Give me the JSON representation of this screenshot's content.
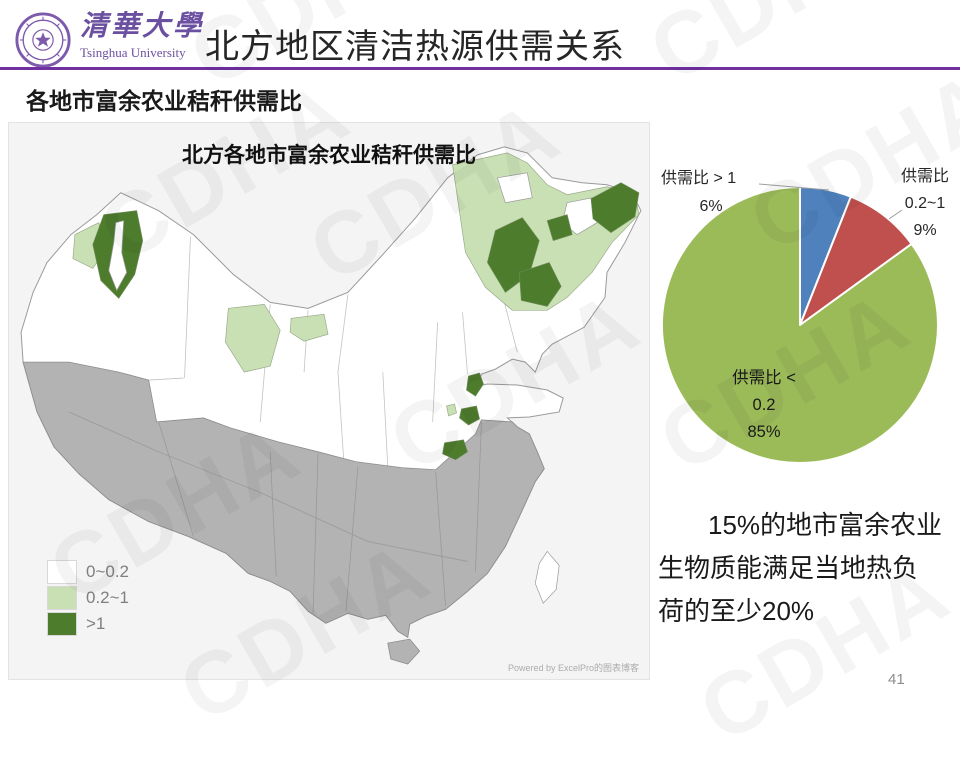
{
  "slide": {
    "watermark": "CDHA",
    "page_number": "41"
  },
  "header": {
    "logo_cn": "清華大學",
    "logo_en": "Tsinghua University",
    "title": "北方地区清洁热源供需关系",
    "accent_color": "#7030a0",
    "logo_color": "#6b4fa0"
  },
  "section_title": "各地市富余农业秸秆供需比",
  "map_panel": {
    "title": "北方各地市富余农业秸秆供需比",
    "legend": [
      {
        "label": "0~0.2",
        "color": "#ffffff"
      },
      {
        "label": "0.2~1",
        "color": "#c9e0b5"
      },
      {
        "label": ">1",
        "color": "#4d7c2d"
      }
    ],
    "out_of_scope_color": "#b3b3b3",
    "background_color": "#f4f4f4",
    "credit": "Powered by ExcelPro的图表博客"
  },
  "chart_data": {
    "type": "pie",
    "categories": [
      "供需比 > 1",
      "供需比 0.2~1",
      "供需比 < 0.2"
    ],
    "values": [
      6,
      9,
      85
    ],
    "colors": [
      "#4f81bd",
      "#c0504d",
      "#9bbb59"
    ],
    "start_angle_deg": 0,
    "direction": "clockwise",
    "legend_position": "none",
    "callout_left": [
      "供需比 > 1",
      "6%"
    ],
    "callout_right": [
      "供需比",
      "0.2~1",
      "9%"
    ],
    "label_inside": [
      "供需比 <",
      "0.2",
      "85%"
    ]
  },
  "summary": {
    "full": "15%的地市富余农业生物质能满足当地热负荷的至少20%",
    "lines": [
      "15%的地市富余农业",
      "生物质能满足当地热负",
      "荷的至少20%"
    ]
  }
}
